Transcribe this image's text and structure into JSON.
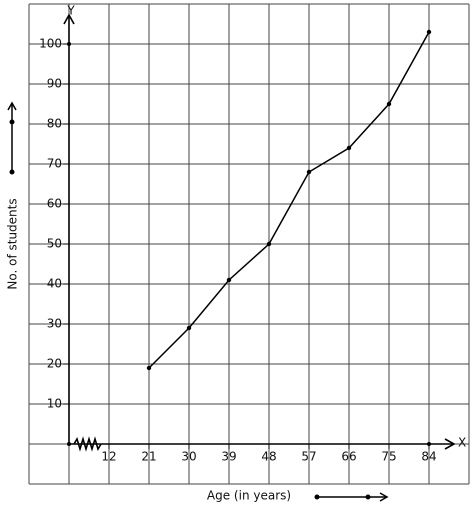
{
  "chart_data": {
    "type": "line",
    "y_axis_label": "No. of students",
    "x_axis_label": "Age (in years)",
    "x_axis_name": "X",
    "y_axis_name": "Y",
    "x": [
      21,
      30,
      39,
      48,
      57,
      66,
      75,
      84
    ],
    "values": [
      19,
      29,
      41,
      50,
      68,
      74,
      85,
      103
    ],
    "color": "#000000",
    "xlim": [
      3,
      93
    ],
    "xticks": [
      12,
      21,
      30,
      39,
      48,
      57,
      66,
      75,
      84
    ],
    "ylim": [
      0,
      110
    ],
    "yticks": [
      10,
      20,
      30,
      40,
      50,
      60,
      70,
      80,
      90,
      100
    ],
    "grid": true
  }
}
